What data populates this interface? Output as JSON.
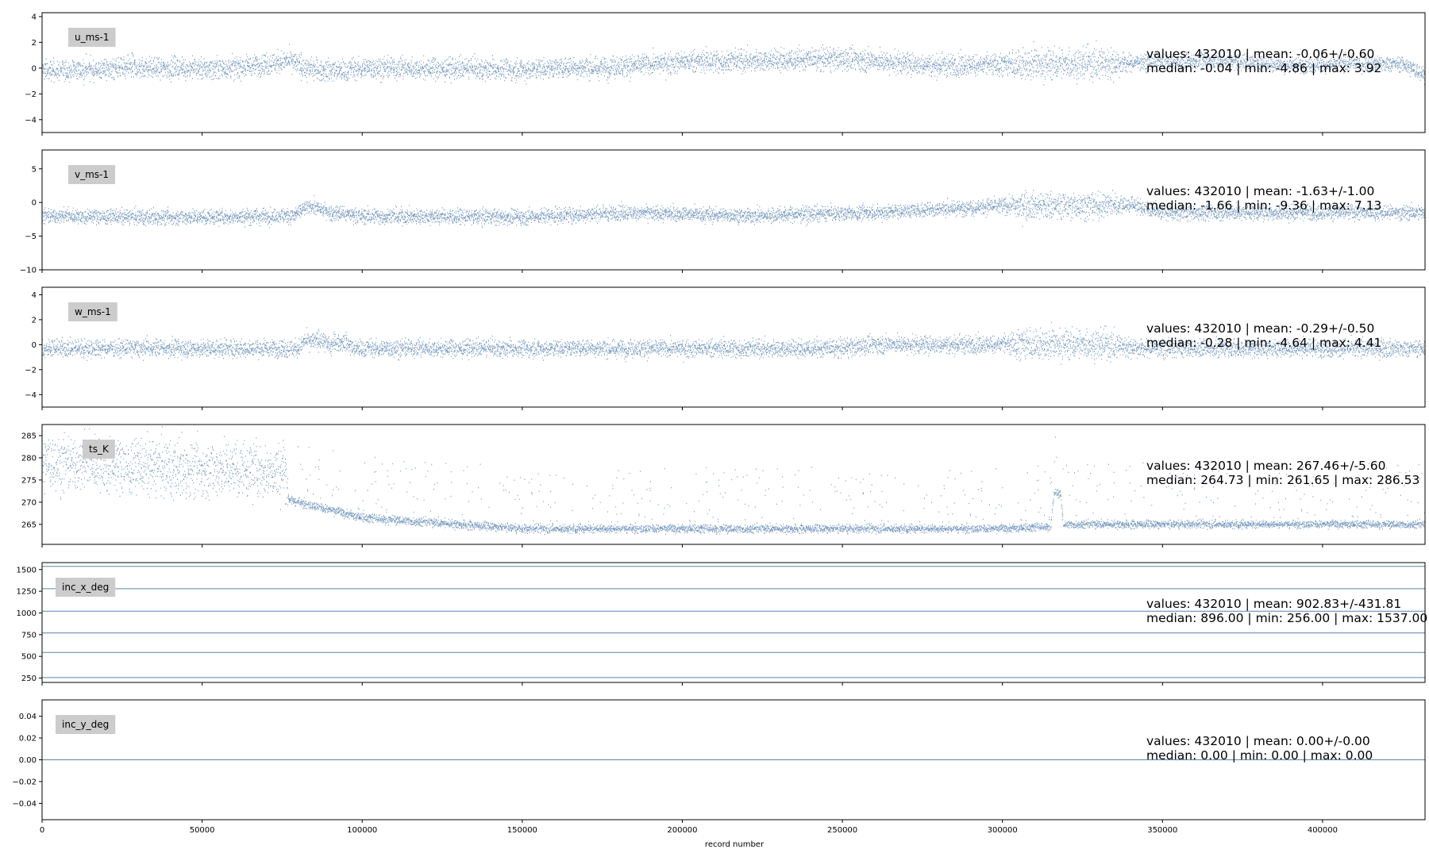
{
  "chart_data": {
    "type": "scatter",
    "xlabel": "record number",
    "xlim": [
      0,
      432010
    ],
    "xticks": [
      0,
      50000,
      100000,
      150000,
      200000,
      250000,
      300000,
      350000,
      400000
    ],
    "xtick_labels": [
      "0",
      "50000",
      "100000",
      "150000",
      "200000",
      "250000",
      "300000",
      "350000",
      "400000"
    ],
    "marker_color": "#5b84b1",
    "label_box_color": "#cccccc",
    "panels": [
      {
        "name": "u_ms-1",
        "ylim": [
          -5.0,
          4.3
        ],
        "yticks": [
          -4,
          -2,
          0,
          2,
          4
        ],
        "ytick_labels": [
          "−4",
          "−2",
          "0",
          "2",
          "4"
        ],
        "stats_line1": "values: 432010 | mean: -0.06+/-0.60",
        "stats_line2": "median: -0.04 | min: -4.86 | max: 3.92",
        "trend": [
          [
            0,
            -0.2
          ],
          [
            30000,
            0.0
          ],
          [
            60000,
            0.0
          ],
          [
            78000,
            0.6
          ],
          [
            82000,
            -0.1
          ],
          [
            95000,
            -0.2
          ],
          [
            100000,
            0.0
          ],
          [
            150000,
            -0.1
          ],
          [
            180000,
            0.1
          ],
          [
            200000,
            0.5
          ],
          [
            250000,
            0.7
          ],
          [
            280000,
            0.2
          ],
          [
            320000,
            0.3
          ],
          [
            340000,
            0.4
          ],
          [
            370000,
            0.6
          ],
          [
            390000,
            0.2
          ],
          [
            410000,
            0.4
          ],
          [
            425000,
            0.3
          ],
          [
            432010,
            -0.5
          ]
        ],
        "noise": [
          [
            0,
            0.6
          ],
          [
            300000,
            0.6
          ],
          [
            306000,
            0.9
          ],
          [
            332000,
            0.9
          ],
          [
            340000,
            0.45
          ],
          [
            432010,
            0.45
          ]
        ]
      },
      {
        "name": "v_ms-1",
        "ylim": [
          -10.0,
          7.8
        ],
        "yticks": [
          -10,
          -5,
          0,
          5
        ],
        "ytick_labels": [
          "−10",
          "−5",
          "0",
          "5"
        ],
        "stats_line1": "values: 432010 | mean: -1.63+/-1.00",
        "stats_line2": "median: -1.66 | min: -9.36 | max: 7.13",
        "trend": [
          [
            0,
            -2.0
          ],
          [
            50000,
            -2.2
          ],
          [
            78000,
            -2.0
          ],
          [
            84000,
            -0.5
          ],
          [
            90000,
            -1.5
          ],
          [
            100000,
            -2.0
          ],
          [
            150000,
            -2.2
          ],
          [
            180000,
            -1.5
          ],
          [
            220000,
            -2.0
          ],
          [
            260000,
            -1.5
          ],
          [
            300000,
            -0.5
          ],
          [
            320000,
            -0.5
          ],
          [
            340000,
            -0.3
          ],
          [
            350000,
            -1.5
          ],
          [
            400000,
            -1.5
          ],
          [
            432010,
            -1.5
          ]
        ],
        "noise": [
          [
            0,
            0.8
          ],
          [
            300000,
            0.8
          ],
          [
            306000,
            1.4
          ],
          [
            332000,
            1.4
          ],
          [
            340000,
            0.8
          ],
          [
            432010,
            0.8
          ]
        ]
      },
      {
        "name": "w_ms-1",
        "ylim": [
          -5.0,
          4.6
        ],
        "yticks": [
          -4,
          -2,
          0,
          2,
          4
        ],
        "ytick_labels": [
          "−4",
          "−2",
          "0",
          "2",
          "4"
        ],
        "stats_line1": "values: 432010 | mean: -0.29+/-0.50",
        "stats_line2": "median: -0.28 | min: -4.64 | max: 4.41",
        "trend": [
          [
            0,
            -0.3
          ],
          [
            80000,
            -0.3
          ],
          [
            82000,
            0.3
          ],
          [
            88000,
            0.3
          ],
          [
            90000,
            -0.3
          ],
          [
            91000,
            0.2
          ],
          [
            95000,
            0.2
          ],
          [
            97000,
            -0.3
          ],
          [
            250000,
            -0.3
          ],
          [
            260000,
            0.0
          ],
          [
            330000,
            0.0
          ],
          [
            345000,
            -0.3
          ],
          [
            432010,
            -0.3
          ]
        ],
        "noise": [
          [
            0,
            0.5
          ],
          [
            300000,
            0.5
          ],
          [
            306000,
            0.9
          ],
          [
            332000,
            0.9
          ],
          [
            340000,
            0.5
          ],
          [
            432010,
            0.5
          ]
        ]
      },
      {
        "name": "ts_K",
        "ylim": [
          260.5,
          287.5
        ],
        "yticks": [
          265,
          270,
          275,
          280,
          285
        ],
        "ytick_labels": [
          "265",
          "270",
          "275",
          "280",
          "285"
        ],
        "stats_line1": "values: 432010 | mean: 267.46+/-5.60",
        "stats_line2": "median: 264.73 | min: 261.65 | max: 286.53",
        "trend": [
          [
            0,
            279.0
          ],
          [
            76000,
            277.0
          ],
          [
            77000,
            270.5
          ],
          [
            100000,
            266.5
          ],
          [
            150000,
            264.0
          ],
          [
            250000,
            264.0
          ],
          [
            300000,
            264.0
          ],
          [
            315000,
            264.5
          ],
          [
            316000,
            272.0
          ],
          [
            318000,
            272.0
          ],
          [
            319000,
            265.0
          ],
          [
            432010,
            265.0
          ]
        ],
        "noise": [
          [
            0,
            4.5
          ],
          [
            76000,
            4.5
          ],
          [
            77000,
            0.7
          ],
          [
            432010,
            0.6
          ]
        ]
      },
      {
        "name": "inc_x_deg",
        "ylim": [
          200,
          1580
        ],
        "yticks": [
          250,
          500,
          750,
          1000,
          1250,
          1500
        ],
        "ytick_labels": [
          "250",
          "500",
          "750",
          "1000",
          "1250",
          "1500"
        ],
        "stats_line1": "values: 432010 | mean: 902.83+/-431.81",
        "stats_line2": "median: 896.00 | min: 256.00 | max: 1537.00",
        "levels": [
          256,
          545,
          770,
          1020,
          1280,
          1537
        ]
      },
      {
        "name": "inc_y_deg",
        "ylim": [
          -0.055,
          0.055
        ],
        "yticks": [
          -0.04,
          -0.02,
          0.0,
          0.02,
          0.04
        ],
        "ytick_labels": [
          "−0.04",
          "−0.02",
          "0.00",
          "0.02",
          "0.04"
        ],
        "stats_line1": "values: 432010 | mean: 0.00+/-0.00",
        "stats_line2": "median: 0.00 | min: 0.00 | max: 0.00",
        "levels": [
          0.0
        ]
      }
    ]
  }
}
